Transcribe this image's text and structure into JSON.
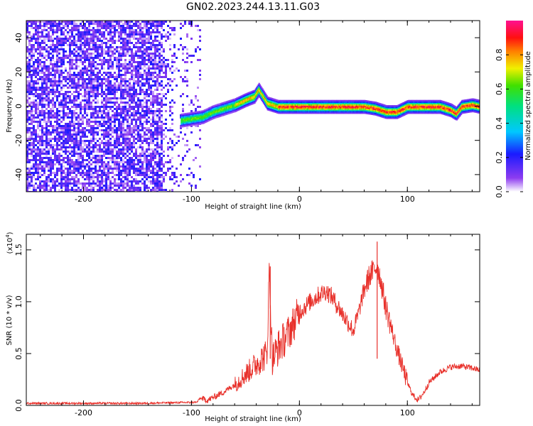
{
  "title": "GN02.2023.244.13.11.G03",
  "chart_data": [
    {
      "type": "heatmap",
      "xlabel": "Height of straight line (km)",
      "ylabel": "Frequency (Hz)",
      "xlim": [
        -253,
        167
      ],
      "ylim": [
        -50,
        50
      ],
      "xticks": [
        -200,
        -100,
        0,
        100
      ],
      "yticks": [
        -40,
        -20,
        0,
        20,
        40
      ],
      "colorbar": {
        "label": "Normalized spectral amplitude",
        "range": [
          0,
          1
        ],
        "ticks": [
          "0.0",
          "0.2",
          "0.4",
          "0.6",
          "0.8"
        ]
      },
      "noise_region": {
        "x_from": -253,
        "x_to": -93
      },
      "ridge": {
        "x": [
          -110,
          -100,
          -90,
          -80,
          -70,
          -60,
          -50,
          -42,
          -38,
          -30,
          -20,
          -10,
          0,
          20,
          40,
          60,
          70,
          80,
          90,
          100,
          110,
          120,
          130,
          140,
          145,
          150,
          160,
          167
        ],
        "y": [
          -8,
          -7,
          -6,
          -3,
          -1,
          1,
          4,
          6,
          10,
          2,
          0,
          0,
          0,
          0,
          0,
          0,
          -1,
          -3,
          -3,
          0,
          0,
          0,
          0,
          -2,
          -4,
          0,
          1,
          0
        ]
      }
    },
    {
      "type": "line",
      "xlabel": "Height of straight line (km)",
      "ylabel": "SNR (10 * v/v)",
      "multiplier": "(x10",
      "multiplier_exp": "4",
      "xlim": [
        -253,
        167
      ],
      "ylim": [
        0,
        1.65
      ],
      "xticks": [
        -200,
        -100,
        0,
        100
      ],
      "yticks": [
        "0.0",
        "0.5",
        "1.0",
        "1.5"
      ],
      "color": "#e8302a",
      "series": [
        {
          "x": [
            -253,
            -150,
            -95,
            -92,
            -85,
            -70,
            -60,
            -50,
            -40,
            -30,
            -28,
            -25,
            -20,
            -10,
            0,
            10,
            20,
            25,
            30,
            40,
            50,
            55,
            60,
            65,
            70,
            72,
            75,
            80,
            90,
            100,
            105,
            110,
            115,
            120,
            130,
            140,
            150,
            160,
            167
          ],
          "y": [
            0.02,
            0.02,
            0.03,
            0.07,
            0.05,
            0.13,
            0.2,
            0.3,
            0.4,
            0.5,
            1.3,
            0.45,
            0.55,
            0.7,
            0.9,
            1.0,
            1.08,
            1.1,
            1.05,
            0.88,
            0.72,
            0.9,
            1.12,
            1.25,
            1.32,
            1.35,
            1.22,
            0.95,
            0.55,
            0.22,
            0.1,
            0.05,
            0.12,
            0.22,
            0.32,
            0.37,
            0.38,
            0.36,
            0.34
          ],
          "spikes": [
            {
              "x": -27,
              "y": 1.34
            },
            {
              "x": 72,
              "y": 1.58
            }
          ]
        }
      ]
    }
  ]
}
